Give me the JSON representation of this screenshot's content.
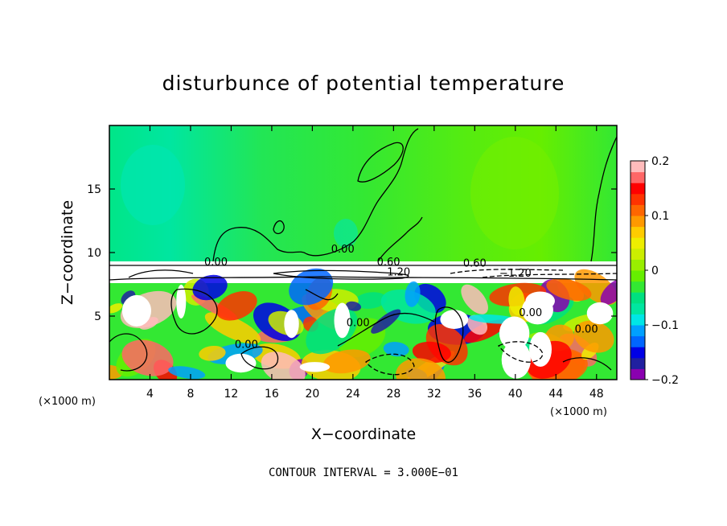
{
  "chart_data": {
    "type": "heatmap",
    "title": "disturbunce of potential temperature",
    "xlabel": "X−coordinate",
    "ylabel": "Z−coordinate",
    "x_unit": "(×1000 m)",
    "y_unit": "(×1000 m)",
    "xlim": [
      0,
      50
    ],
    "ylim": [
      0,
      20
    ],
    "xticks": [
      4,
      8,
      12,
      16,
      20,
      24,
      28,
      32,
      36,
      40,
      44,
      48
    ],
    "yticks": [
      5,
      10,
      15
    ],
    "contour_interval_text": "CONTOUR INTERVAL = 3.000E−01",
    "contour_labels": [
      {
        "text": "0.00",
        "x": 23.0,
        "z": 10.0
      },
      {
        "text": "0.00",
        "x": 10.5,
        "z": 9.0
      },
      {
        "text": "0.60",
        "x": 27.5,
        "z": 9.0
      },
      {
        "text": "1.20",
        "x": 28.5,
        "z": 8.2
      },
      {
        "text": "0.60",
        "x": 36.0,
        "z": 8.9
      },
      {
        "text": "−1.20",
        "x": 40.0,
        "z": 8.1
      },
      {
        "text": "0.00",
        "x": 13.5,
        "z": 2.5
      },
      {
        "text": "0.00",
        "x": 24.5,
        "z": 4.2
      },
      {
        "text": "0.00",
        "x": 41.5,
        "z": 5.0
      },
      {
        "text": "0.00",
        "x": 47.0,
        "z": 3.7
      }
    ],
    "colorbar": {
      "range": [
        -0.2,
        0.2
      ],
      "tick_labels": [
        "0.2",
        "0.1",
        "0",
        "−0.1",
        "−0.2"
      ],
      "tick_values": [
        0.2,
        0.1,
        0,
        -0.1,
        -0.2
      ],
      "colors": [
        "#8a00b0",
        "#2020a0",
        "#0000e6",
        "#0066ff",
        "#00a0ff",
        "#00e6e6",
        "#00e6a0",
        "#00e080",
        "#33e833",
        "#66ee00",
        "#99ee00",
        "#ccee00",
        "#eeee00",
        "#ffcc00",
        "#ff9900",
        "#ff6600",
        "#ff3300",
        "#ff0000",
        "#ff6666",
        "#ffbbbb"
      ]
    },
    "notes": "Upper layer (z > 9.3 km) nearly uniform ~0.01-0.03; inversion band ~7.8-9.3 km with large |values| (white, saturated); turbulent lower layer 0-7.8 km with values spanning colorbar range."
  }
}
